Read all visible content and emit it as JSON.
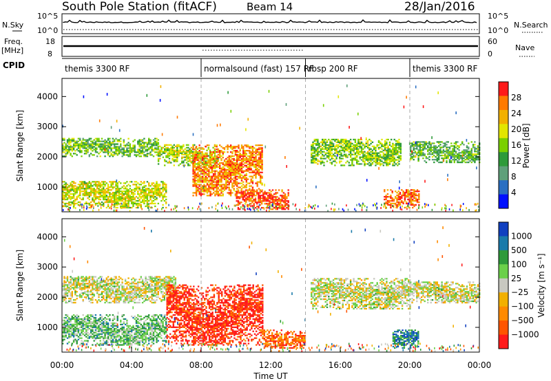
{
  "header": {
    "station": "South Pole Station (fitACF)",
    "beam": "Beam 14",
    "date": "28/Jan/2016"
  },
  "top_panels": {
    "nsky_label": "N.Sky",
    "nsky_ticks": [
      "10^5",
      "10^0"
    ],
    "nsearch_label": "N.Search",
    "nsearch_ticks": [
      "10^5",
      "10^0"
    ],
    "freq_label": "Freq.",
    "freq_unit": "[MHz]",
    "freq_ticks": [
      "18",
      "8"
    ],
    "nave_label": "Nave",
    "nave_ticks": [
      "60",
      "0"
    ],
    "cpid_label": "CPID",
    "modes": [
      {
        "name": "themis 3300 RF",
        "start": 0,
        "end": 8.0
      },
      {
        "name": "normalsound (fast) 157 RF",
        "start": 8.0,
        "end": 14.0
      },
      {
        "name": "rbsp 200 RF",
        "start": 14.0,
        "end": 20.0
      },
      {
        "name": "themis 3300 RF",
        "start": 20.0,
        "end": 24.0
      }
    ]
  },
  "chart_data": [
    {
      "type": "heatmap",
      "panel": "power",
      "ylabel": "Slant Range [km]",
      "xlim": [
        0,
        24
      ],
      "ylim": [
        180,
        4600
      ],
      "yticks": [
        "1000",
        "2000",
        "3000",
        "4000"
      ],
      "colorbar": {
        "label": "Power [dB]",
        "ticks": [
          "28",
          "24",
          "20",
          "16",
          "12",
          "8",
          "4"
        ],
        "colors": [
          "#ff1a1a",
          "#ff7a00",
          "#f2b000",
          "#e3e600",
          "#7ad000",
          "#2e9a3a",
          "#5fa07a",
          "#2a6fc2",
          "#0010ff"
        ]
      },
      "echo_bands": [
        {
          "t0": 0.0,
          "t1": 5.5,
          "r0": 2000,
          "r1": 2600,
          "level": 0.45
        },
        {
          "t0": 5.5,
          "t1": 9.0,
          "r0": 1700,
          "r1": 2400,
          "level": 0.55
        },
        {
          "t0": 7.5,
          "t1": 11.5,
          "r0": 700,
          "r1": 2400,
          "level": 0.8
        },
        {
          "t0": 0.0,
          "t1": 6.0,
          "r0": 300,
          "r1": 1200,
          "level": 0.6
        },
        {
          "t0": 10.0,
          "t1": 13.0,
          "r0": 250,
          "r1": 900,
          "level": 0.9
        },
        {
          "t0": 14.3,
          "t1": 19.5,
          "r0": 1700,
          "r1": 2600,
          "level": 0.5
        },
        {
          "t0": 18.5,
          "t1": 20.5,
          "r0": 300,
          "r1": 900,
          "level": 0.85
        },
        {
          "t0": 20.0,
          "t1": 24.0,
          "r0": 1800,
          "r1": 2500,
          "level": 0.4
        }
      ]
    },
    {
      "type": "heatmap",
      "panel": "velocity",
      "ylabel": "Slant Range [km]",
      "xlabel": "Time UT",
      "xlim": [
        0,
        24
      ],
      "ylim": [
        180,
        4600
      ],
      "yticks": [
        "1000",
        "2000",
        "3000",
        "4000"
      ],
      "xticks": [
        "00:00",
        "04:00",
        "08:00",
        "12:00",
        "16:00",
        "20:00",
        "00:00"
      ],
      "colorbar": {
        "label": "Velocity [m s⁻¹]",
        "ticks": [
          "1000",
          "500",
          "100",
          "25",
          "−25",
          "−100",
          "−500",
          "−1000"
        ],
        "colors": [
          "#1040c0",
          "#1a7aaa",
          "#2e9a3a",
          "#6bd04a",
          "#c8c8c0",
          "#f2b000",
          "#ff8a00",
          "#ff5500",
          "#ff1a1a"
        ]
      },
      "echo_bands": [
        {
          "t0": 0.0,
          "t1": 6.5,
          "r0": 1800,
          "r1": 2700,
          "level": 0.5
        },
        {
          "t0": 0.0,
          "t1": 6.0,
          "r0": 400,
          "r1": 1400,
          "level": 0.65
        },
        {
          "t0": 6.0,
          "t1": 11.5,
          "r0": 400,
          "r1": 2400,
          "level": 0.08
        },
        {
          "t0": 11.5,
          "t1": 14.0,
          "r0": 300,
          "r1": 900,
          "level": 0.2
        },
        {
          "t0": 14.3,
          "t1": 20.0,
          "r0": 1600,
          "r1": 2600,
          "level": 0.5
        },
        {
          "t0": 19.0,
          "t1": 20.5,
          "r0": 300,
          "r1": 900,
          "level": 0.8
        },
        {
          "t0": 20.0,
          "t1": 24.0,
          "r0": 1800,
          "r1": 2500,
          "level": 0.5
        }
      ]
    }
  ]
}
